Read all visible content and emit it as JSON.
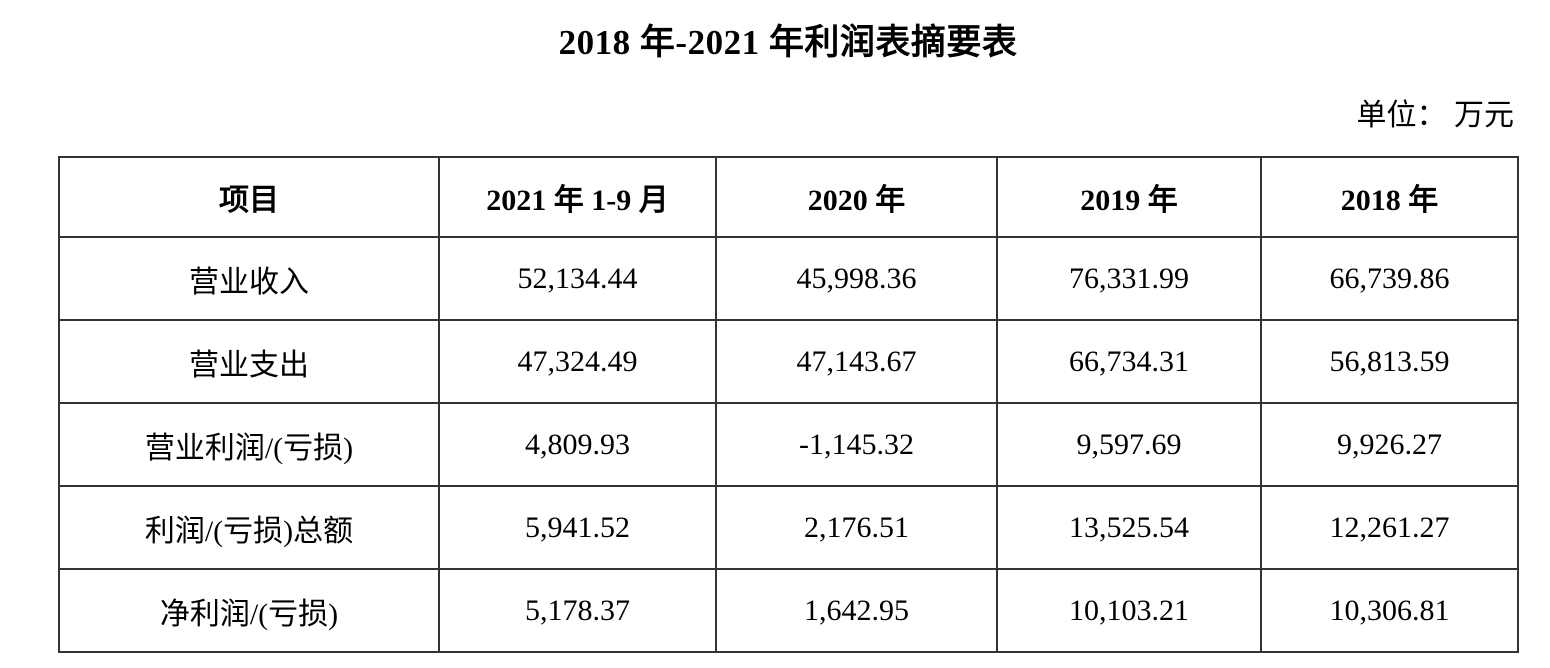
{
  "document": {
    "title": "2018 年-2021 年利润表摘要表",
    "unit_label": "单位： 万元"
  },
  "table": {
    "headers": [
      "项目",
      "2021 年 1-9 月",
      "2020 年",
      "2019 年",
      "2018 年"
    ],
    "rows": [
      {
        "label": "营业收入",
        "values": [
          "52,134.44",
          "45,998.36",
          "76,331.99",
          "66,739.86"
        ]
      },
      {
        "label": "营业支出",
        "values": [
          "47,324.49",
          "47,143.67",
          "66,734.31",
          "56,813.59"
        ]
      },
      {
        "label": "营业利润/(亏损)",
        "values": [
          "4,809.93",
          "-1,145.32",
          "9,597.69",
          "9,926.27"
        ]
      },
      {
        "label": "利润/(亏损)总额",
        "values": [
          "5,941.52",
          "2,176.51",
          "13,525.54",
          "12,261.27"
        ]
      },
      {
        "label": "净利润/(亏损)",
        "values": [
          "5,178.37",
          "1,642.95",
          "10,103.21",
          "10,306.81"
        ]
      }
    ]
  }
}
